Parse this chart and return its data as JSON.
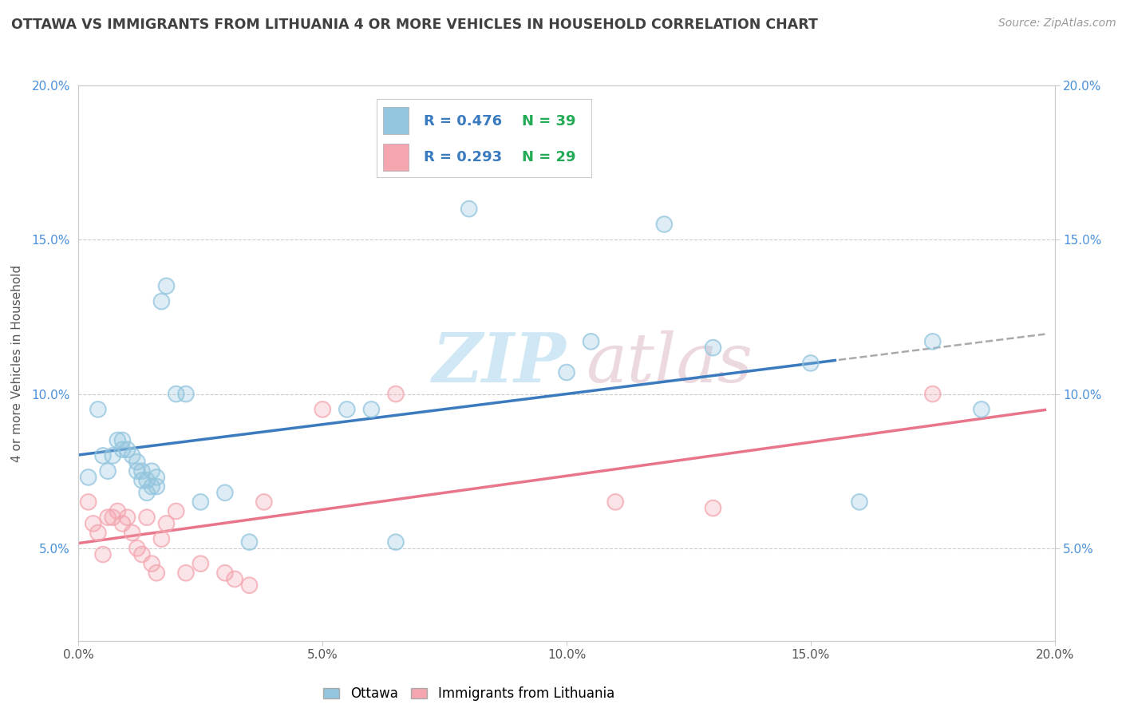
{
  "title": "OTTAWA VS IMMIGRANTS FROM LITHUANIA 4 OR MORE VEHICLES IN HOUSEHOLD CORRELATION CHART",
  "source": "Source: ZipAtlas.com",
  "ylabel": "4 or more Vehicles in Household",
  "legend_r1": "R = 0.476",
  "legend_r2": "R = 0.293",
  "legend_n1": "N = 39",
  "legend_n2": "N = 29",
  "ottawa_color": "#92c5de",
  "lithuania_color": "#f4a6b0",
  "ottawa_line_color": "#3a7abf",
  "lithuania_line_color": "#e8758a",
  "r_text_color": "#3a7abf",
  "n_text_color": "#3a7abf",
  "xlim": [
    0.0,
    0.2
  ],
  "ylim": [
    0.02,
    0.2
  ],
  "xticks": [
    0.0,
    0.05,
    0.1,
    0.15,
    0.2
  ],
  "yticks": [
    0.05,
    0.1,
    0.15,
    0.2
  ],
  "xticklabels": [
    "0.0%",
    "5.0%",
    "10.0%",
    "15.0%",
    "20.0%"
  ],
  "yticklabels": [
    "5.0%",
    "10.0%",
    "15.0%",
    "20.0%"
  ],
  "ottawa_x": [
    0.002,
    0.004,
    0.005,
    0.006,
    0.007,
    0.008,
    0.009,
    0.009,
    0.01,
    0.011,
    0.012,
    0.012,
    0.013,
    0.013,
    0.014,
    0.014,
    0.015,
    0.015,
    0.016,
    0.016,
    0.017,
    0.018,
    0.02,
    0.022,
    0.025,
    0.03,
    0.035,
    0.055,
    0.06,
    0.065,
    0.08,
    0.1,
    0.105,
    0.12,
    0.13,
    0.15,
    0.16,
    0.175,
    0.185
  ],
  "ottawa_y": [
    0.073,
    0.095,
    0.08,
    0.075,
    0.08,
    0.085,
    0.085,
    0.082,
    0.082,
    0.08,
    0.075,
    0.078,
    0.075,
    0.072,
    0.068,
    0.072,
    0.075,
    0.07,
    0.07,
    0.073,
    0.13,
    0.135,
    0.1,
    0.1,
    0.065,
    0.068,
    0.052,
    0.095,
    0.095,
    0.052,
    0.16,
    0.107,
    0.117,
    0.155,
    0.115,
    0.11,
    0.065,
    0.117,
    0.095
  ],
  "lithuania_x": [
    0.002,
    0.003,
    0.004,
    0.005,
    0.006,
    0.007,
    0.008,
    0.009,
    0.01,
    0.011,
    0.012,
    0.013,
    0.014,
    0.015,
    0.016,
    0.017,
    0.018,
    0.02,
    0.022,
    0.025,
    0.03,
    0.032,
    0.035,
    0.038,
    0.05,
    0.065,
    0.11,
    0.13,
    0.175
  ],
  "lithuania_y": [
    0.065,
    0.058,
    0.055,
    0.048,
    0.06,
    0.06,
    0.062,
    0.058,
    0.06,
    0.055,
    0.05,
    0.048,
    0.06,
    0.045,
    0.042,
    0.053,
    0.058,
    0.062,
    0.042,
    0.045,
    0.042,
    0.04,
    0.038,
    0.065,
    0.095,
    0.1,
    0.065,
    0.063,
    0.1
  ]
}
